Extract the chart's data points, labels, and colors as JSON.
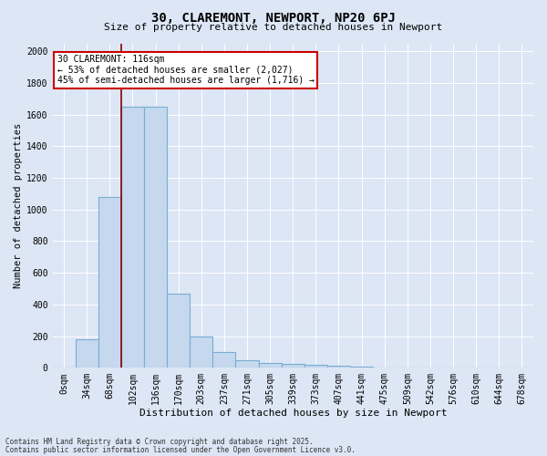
{
  "title": "30, CLAREMONT, NEWPORT, NP20 6PJ",
  "subtitle": "Size of property relative to detached houses in Newport",
  "xlabel": "Distribution of detached houses by size in Newport",
  "ylabel": "Number of detached properties",
  "bar_color": "#c5d8ed",
  "bar_edge_color": "#7aadd4",
  "categories": [
    "0sqm",
    "34sqm",
    "68sqm",
    "102sqm",
    "136sqm",
    "170sqm",
    "203sqm",
    "237sqm",
    "271sqm",
    "305sqm",
    "339sqm",
    "373sqm",
    "407sqm",
    "441sqm",
    "475sqm",
    "509sqm",
    "542sqm",
    "576sqm",
    "610sqm",
    "644sqm",
    "678sqm"
  ],
  "values": [
    0,
    180,
    1080,
    1650,
    1650,
    470,
    200,
    100,
    50,
    30,
    25,
    20,
    10,
    5,
    3,
    2,
    1,
    1,
    0,
    0,
    0
  ],
  "ylim": [
    0,
    2050
  ],
  "yticks": [
    0,
    200,
    400,
    600,
    800,
    1000,
    1200,
    1400,
    1600,
    1800,
    2000
  ],
  "vline_x": 2.5,
  "vline_color": "#8b0000",
  "annotation_text": "30 CLAREMONT: 116sqm\n← 53% of detached houses are smaller (2,027)\n45% of semi-detached houses are larger (1,716) →",
  "annotation_box_facecolor": "#ffffff",
  "annotation_box_edgecolor": "#cc0000",
  "footnote1": "Contains HM Land Registry data © Crown copyright and database right 2025.",
  "footnote2": "Contains public sector information licensed under the Open Government Licence v3.0.",
  "background_color": "#dce6f5",
  "plot_bg_color": "#dce6f5",
  "grid_color": "#ffffff",
  "title_fontsize": 10,
  "subtitle_fontsize": 8,
  "tick_fontsize": 7,
  "xlabel_fontsize": 8,
  "ylabel_fontsize": 7.5,
  "annot_fontsize": 7,
  "footnote_fontsize": 5.5
}
